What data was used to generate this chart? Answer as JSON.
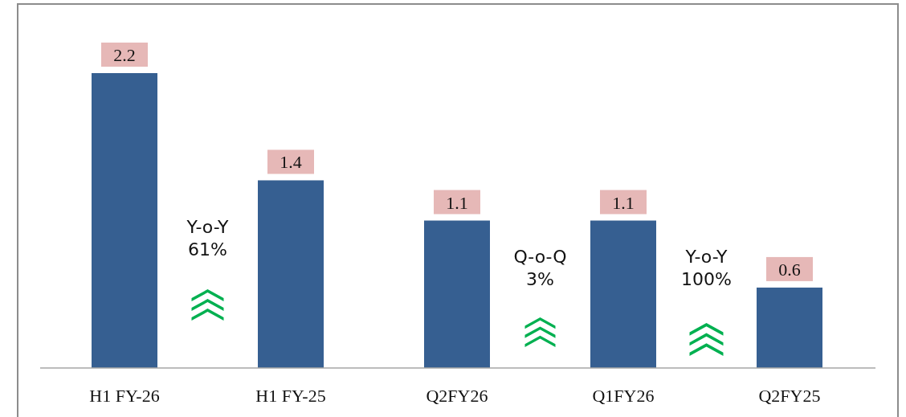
{
  "chart_data": {
    "type": "bar",
    "categories": [
      "H1 FY-26",
      "H1 FY-25",
      "Q2FY26",
      "Q1FY26",
      "Q2FY25"
    ],
    "values": [
      2.2,
      1.4,
      1.1,
      1.1,
      0.6
    ],
    "color": "#365f91",
    "data_labels": true,
    "annotations": [
      "Y-o-Y\n61%",
      "Q-o-Q\n3%",
      "Y-o-Y\n100%"
    ]
  }
}
